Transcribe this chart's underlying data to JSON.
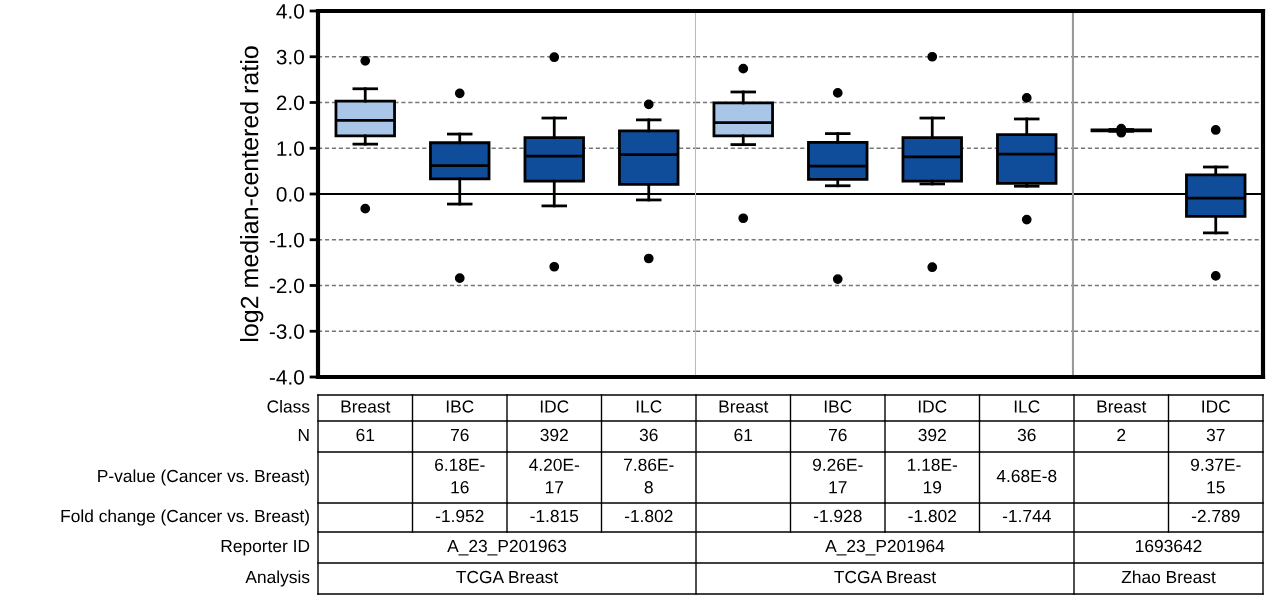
{
  "chart_data": [
    {
      "type": "box",
      "ylabel": "log2 median-centered ratio",
      "tick_labels": "y",
      "categories": [
        "Breast",
        "IBC",
        "IDC",
        "ILC"
      ],
      "colors": [
        "#a9c6e8",
        "#0f4c9a",
        "#0f4c9a",
        "#0f4c9a"
      ],
      "boxes": [
        {
          "low": 1.09,
          "q1": 1.27,
          "median": 1.61,
          "q3": 2.03,
          "high": 2.3,
          "outliers": [
            2.91,
            -0.32
          ]
        },
        {
          "low": -0.22,
          "q1": 0.33,
          "median": 0.62,
          "q3": 1.12,
          "high": 1.31,
          "outliers": [
            2.2,
            -1.84
          ]
        },
        {
          "low": -0.26,
          "q1": 0.28,
          "median": 0.83,
          "q3": 1.23,
          "high": 1.66,
          "outliers": [
            2.99,
            -1.59
          ]
        },
        {
          "low": -0.13,
          "q1": 0.21,
          "median": 0.86,
          "q3": 1.38,
          "high": 1.62,
          "outliers": [
            1.96,
            -1.41
          ]
        }
      ],
      "ylim": [
        -4,
        4
      ],
      "yticks": [
        {
          "value": 4,
          "label": "4.0"
        },
        {
          "value": 3,
          "label": "3.0"
        },
        {
          "value": 2,
          "label": "2.0"
        },
        {
          "value": 1,
          "label": "1.0"
        },
        {
          "value": 0,
          "label": "0.0"
        },
        {
          "value": -1,
          "label": "-1.0"
        },
        {
          "value": -2,
          "label": "-2.0"
        },
        {
          "value": -3,
          "label": "-3.0"
        },
        {
          "value": -4,
          "label": "-4.0"
        }
      ],
      "grid": "y",
      "line_style": "dashed",
      "ref_lines": [
        {
          "axis": "y",
          "value": 0,
          "color": "#000000",
          "line_style": "solid"
        }
      ],
      "annotations": [
        "Class",
        "N",
        "P-value (Cancer vs. Breast)",
        "Fold change (Cancer vs. Breast)",
        "Reporter ID",
        "Analysis",
        "61",
        "76",
        "392",
        "36",
        "6.18E-\n16",
        "4.20E-\n17",
        "7.86E-\n8",
        "-1.952",
        "-1.815",
        "-1.802",
        "A_23_P201963",
        "TCGA Breast"
      ]
    },
    {
      "type": "box",
      "tick_labels": false,
      "categories": [
        "Breast",
        "IBC",
        "IDC",
        "ILC"
      ],
      "colors": [
        "#a9c6e8",
        "#0f4c9a",
        "#0f4c9a",
        "#0f4c9a"
      ],
      "boxes": [
        {
          "low": 1.08,
          "q1": 1.27,
          "median": 1.56,
          "q3": 1.99,
          "high": 2.23,
          "outliers": [
            2.74,
            -0.53
          ]
        },
        {
          "low": 0.18,
          "q1": 0.32,
          "median": 0.61,
          "q3": 1.13,
          "high": 1.32,
          "outliers": [
            2.21,
            -1.86
          ]
        },
        {
          "low": 0.22,
          "q1": 0.28,
          "median": 0.81,
          "q3": 1.23,
          "high": 1.66,
          "outliers": [
            3.0,
            -1.6
          ]
        },
        {
          "low": 0.17,
          "q1": 0.23,
          "median": 0.87,
          "q3": 1.3,
          "high": 1.64,
          "outliers": [
            2.1,
            -0.56
          ]
        }
      ],
      "ylim": [
        -4,
        4
      ],
      "grid": "y",
      "line_style": "dashed",
      "ref_lines": [
        {
          "axis": "y",
          "value": 0,
          "color": "#000000",
          "line_style": "solid"
        }
      ],
      "annotations": [
        "61",
        "76",
        "392",
        "36",
        "9.26E-\n17",
        "1.18E-\n19",
        "4.68E-8",
        "-1.928",
        "-1.802",
        "-1.744",
        "A_23_P201964",
        "TCGA Breast"
      ]
    },
    {
      "type": "box",
      "tick_labels": false,
      "categories": [
        "Breast",
        "IDC"
      ],
      "colors": [
        "#a9c6e8",
        "#0f4c9a"
      ],
      "boxes": [
        {
          "low": 1.37,
          "q1": 1.38,
          "median": 1.39,
          "q3": 1.4,
          "high": 1.41,
          "outliers": [
            1.34,
            1.43
          ]
        },
        {
          "low": -0.85,
          "q1": -0.49,
          "median": -0.09,
          "q3": 0.42,
          "high": 0.59,
          "outliers": [
            1.4,
            -1.79
          ]
        }
      ],
      "ylim": [
        -4,
        4
      ],
      "grid": "y",
      "line_style": "dashed",
      "ref_lines": [
        {
          "axis": "y",
          "value": 0,
          "color": "#000000",
          "line_style": "solid"
        }
      ],
      "annotations": [
        "2",
        "37",
        "9.37E-\n15",
        "-2.789",
        "1693642",
        "Zhao Breast"
      ]
    }
  ]
}
